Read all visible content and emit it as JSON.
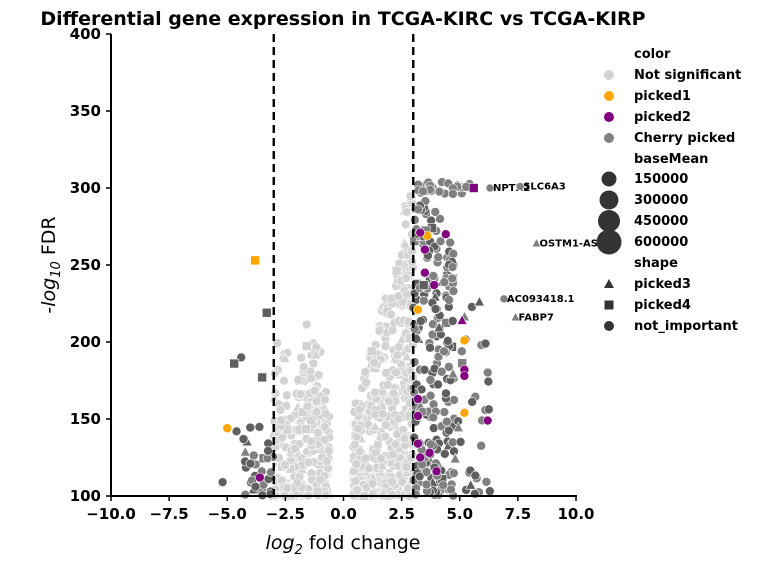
{
  "chart_data": {
    "type": "scatter",
    "title": "Differential gene expression in TCGA-KIRC vs TCGA-KIRP",
    "xlabel_main": "log",
    "xlabel_sub": "2",
    "xlabel_rest": " fold change",
    "ylabel_pre": "-",
    "ylabel_main": "log",
    "ylabel_sub": "10",
    "ylabel_rest": " FDR",
    "xlim": [
      -10,
      10
    ],
    "ylim": [
      100,
      400
    ],
    "x_ticks": [
      -10,
      -7.5,
      -5,
      -2.5,
      0,
      2.5,
      5,
      7.5,
      10
    ],
    "x_tick_labels": [
      "−10.0",
      "−7.5",
      "−5.0",
      "−2.5",
      "0.0",
      "2.5",
      "5.0",
      "7.5",
      "10.0"
    ],
    "y_ticks": [
      100,
      150,
      200,
      250,
      300,
      350,
      400
    ],
    "y_tick_labels": [
      "100",
      "150",
      "200",
      "250",
      "300",
      "350",
      "400"
    ],
    "thresholds": [
      -3,
      3
    ],
    "colors": {
      "Not significant": "#d3d3d3",
      "picked1": "#ffa500",
      "picked2": "#800080",
      "Cherry picked": "#808080",
      "dark": "#5f5f5f"
    },
    "labeled_points": [
      {
        "gene": "NPTX2",
        "x": 6.3,
        "y": 300
      },
      {
        "gene": "SLC6A3",
        "x": 7.6,
        "y": 301
      },
      {
        "gene": "OSTM1-AS",
        "x": 8.3,
        "y": 264
      },
      {
        "gene": "AC093418.1",
        "x": 6.9,
        "y": 228
      },
      {
        "gene": "FABP7",
        "x": 7.4,
        "y": 216
      }
    ],
    "highlighted_points": [
      {
        "x": -3.8,
        "y": 253,
        "color": "picked1",
        "shape": "square"
      },
      {
        "x": -5.0,
        "y": 144,
        "color": "picked1",
        "shape": "circle"
      },
      {
        "x": 5.6,
        "y": 300,
        "color": "picked2",
        "shape": "square"
      },
      {
        "x": 5.2,
        "y": 201,
        "color": "picked1",
        "shape": "circle"
      },
      {
        "x": 5.1,
        "y": 214,
        "color": "picked2",
        "shape": "triangle"
      },
      {
        "x": 3.6,
        "y": 269,
        "color": "picked1",
        "shape": "circle"
      },
      {
        "x": 3.9,
        "y": 237,
        "color": "picked2",
        "shape": "circle"
      },
      {
        "x": 3.3,
        "y": 271,
        "color": "picked2",
        "shape": "circle"
      },
      {
        "x": 4.4,
        "y": 270,
        "color": "picked2",
        "shape": "circle"
      },
      {
        "x": 3.5,
        "y": 260,
        "color": "picked2",
        "shape": "circle"
      },
      {
        "x": 3.5,
        "y": 245,
        "color": "picked2",
        "shape": "circle"
      },
      {
        "x": 3.2,
        "y": 221,
        "color": "picked1",
        "shape": "circle"
      },
      {
        "x": 5.2,
        "y": 182,
        "color": "picked2",
        "shape": "circle"
      },
      {
        "x": 5.2,
        "y": 178,
        "color": "picked2",
        "shape": "circle"
      },
      {
        "x": 3.2,
        "y": 152,
        "color": "picked2",
        "shape": "circle"
      },
      {
        "x": 3.2,
        "y": 134,
        "color": "picked2",
        "shape": "circle"
      },
      {
        "x": 3.3,
        "y": 125,
        "color": "picked2",
        "shape": "circle"
      },
      {
        "x": 3.7,
        "y": 128,
        "color": "picked2",
        "shape": "circle"
      },
      {
        "x": 4.0,
        "y": 116,
        "color": "picked2",
        "shape": "circle"
      },
      {
        "x": 6.2,
        "y": 149,
        "color": "picked2",
        "shape": "circle"
      },
      {
        "x": 5.2,
        "y": 154,
        "color": "picked1",
        "shape": "circle"
      },
      {
        "x": 3.2,
        "y": 163,
        "color": "picked2",
        "shape": "circle"
      },
      {
        "x": -3.6,
        "y": 112,
        "color": "picked2",
        "shape": "circle"
      }
    ],
    "legend": {
      "color_title": "color",
      "color_items": [
        {
          "label": "Not significant",
          "color": "Not significant"
        },
        {
          "label": "picked1",
          "color": "picked1"
        },
        {
          "label": "picked2",
          "color": "picked2"
        },
        {
          "label": "Cherry picked",
          "color": "Cherry picked"
        }
      ],
      "size_title": "baseMean",
      "size_items": [
        "150000",
        "300000",
        "450000",
        "600000"
      ],
      "shape_title": "shape",
      "shape_items": [
        {
          "label": "picked3",
          "shape": "triangle"
        },
        {
          "label": "picked4",
          "shape": "square"
        },
        {
          "label": "not_important",
          "shape": "circle"
        }
      ]
    }
  }
}
